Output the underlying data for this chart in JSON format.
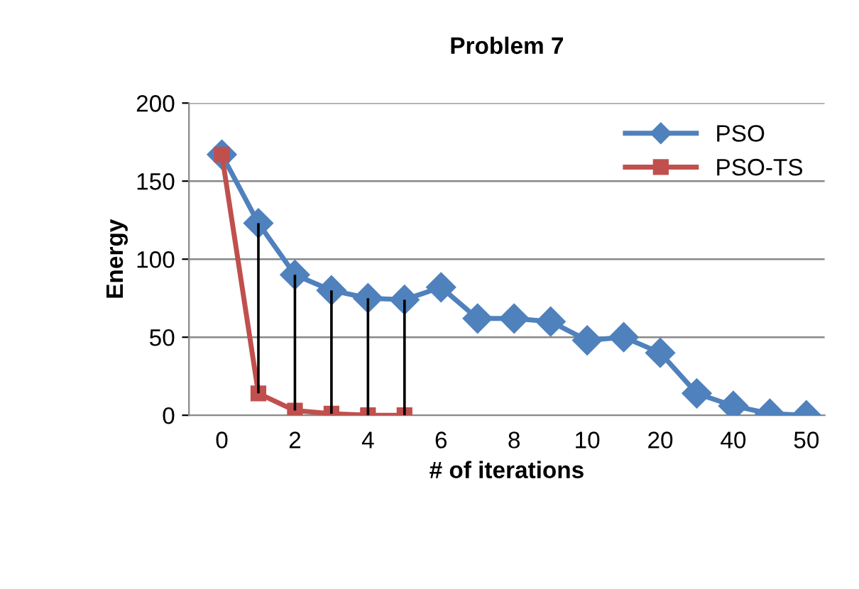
{
  "chart_data": {
    "type": "line",
    "title": "Problem 7",
    "xlabel": "# of iterations",
    "ylabel": "Energy",
    "categories": [
      "0",
      null,
      "2",
      null,
      "4",
      null,
      "6",
      null,
      "8",
      null,
      "10",
      null,
      "20",
      null,
      "40",
      null,
      "50"
    ],
    "series": [
      {
        "name": "PSO",
        "color": "#4f81bd",
        "marker": "diamond",
        "values": [
          167,
          123,
          90,
          80,
          75,
          74,
          82,
          62,
          62,
          60,
          48,
          50,
          40,
          14,
          6,
          1,
          0
        ]
      },
      {
        "name": "PSO-TS",
        "color": "#c0504d",
        "marker": "square",
        "values": [
          167,
          14,
          3,
          1,
          0,
          0,
          null,
          null,
          null,
          null,
          null,
          null,
          null,
          null,
          null,
          null,
          null
        ],
        "errors": [
          null,
          [
            14,
            123
          ],
          [
            3,
            90
          ],
          [
            1,
            80
          ],
          [
            0,
            75
          ],
          [
            0,
            74
          ],
          null,
          null,
          null,
          null,
          null,
          null,
          null,
          null,
          null,
          null,
          null
        ]
      }
    ],
    "ylim": [
      0,
      200
    ],
    "yticks": [
      0,
      50,
      100,
      150,
      200
    ],
    "grid": "y",
    "legend": "top right",
    "line_style": "solid"
  }
}
